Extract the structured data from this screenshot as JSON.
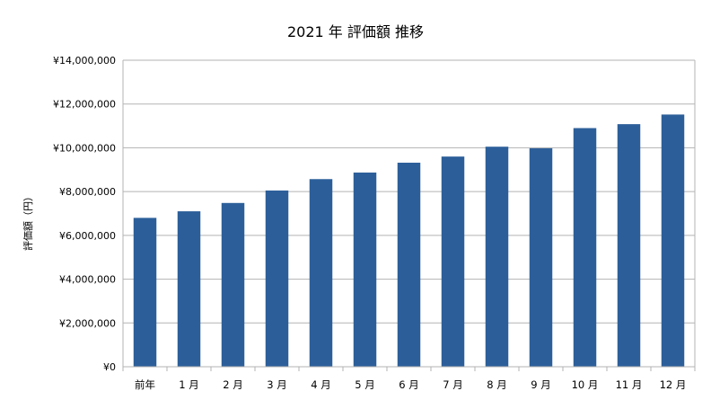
{
  "chart_data": {
    "type": "bar",
    "title": "2021 年 評価額 推移",
    "xlabel": "",
    "ylabel": "評価額（円）",
    "categories": [
      "前年",
      "1 月",
      "2 月",
      "3 月",
      "4 月",
      "5 月",
      "6 月",
      "7 月",
      "8 月",
      "9 月",
      "10 月",
      "11 月",
      "12 月"
    ],
    "values": [
      6800000,
      7100000,
      7480000,
      8050000,
      8570000,
      8870000,
      9320000,
      9600000,
      10050000,
      9980000,
      10900000,
      11080000,
      11520000
    ],
    "ylim": [
      0,
      14000000
    ],
    "yticks": [
      0,
      2000000,
      4000000,
      6000000,
      8000000,
      10000000,
      12000000,
      14000000
    ],
    "ytick_labels": [
      "¥0",
      "¥2,000,000",
      "¥4,000,000",
      "¥6,000,000",
      "¥8,000,000",
      "¥10,000,000",
      "¥12,000,000",
      "¥14,000,000"
    ],
    "grid": true,
    "legend": "none",
    "bar_color": "#2c5f9a",
    "grid_color": "#b3b3b3"
  }
}
